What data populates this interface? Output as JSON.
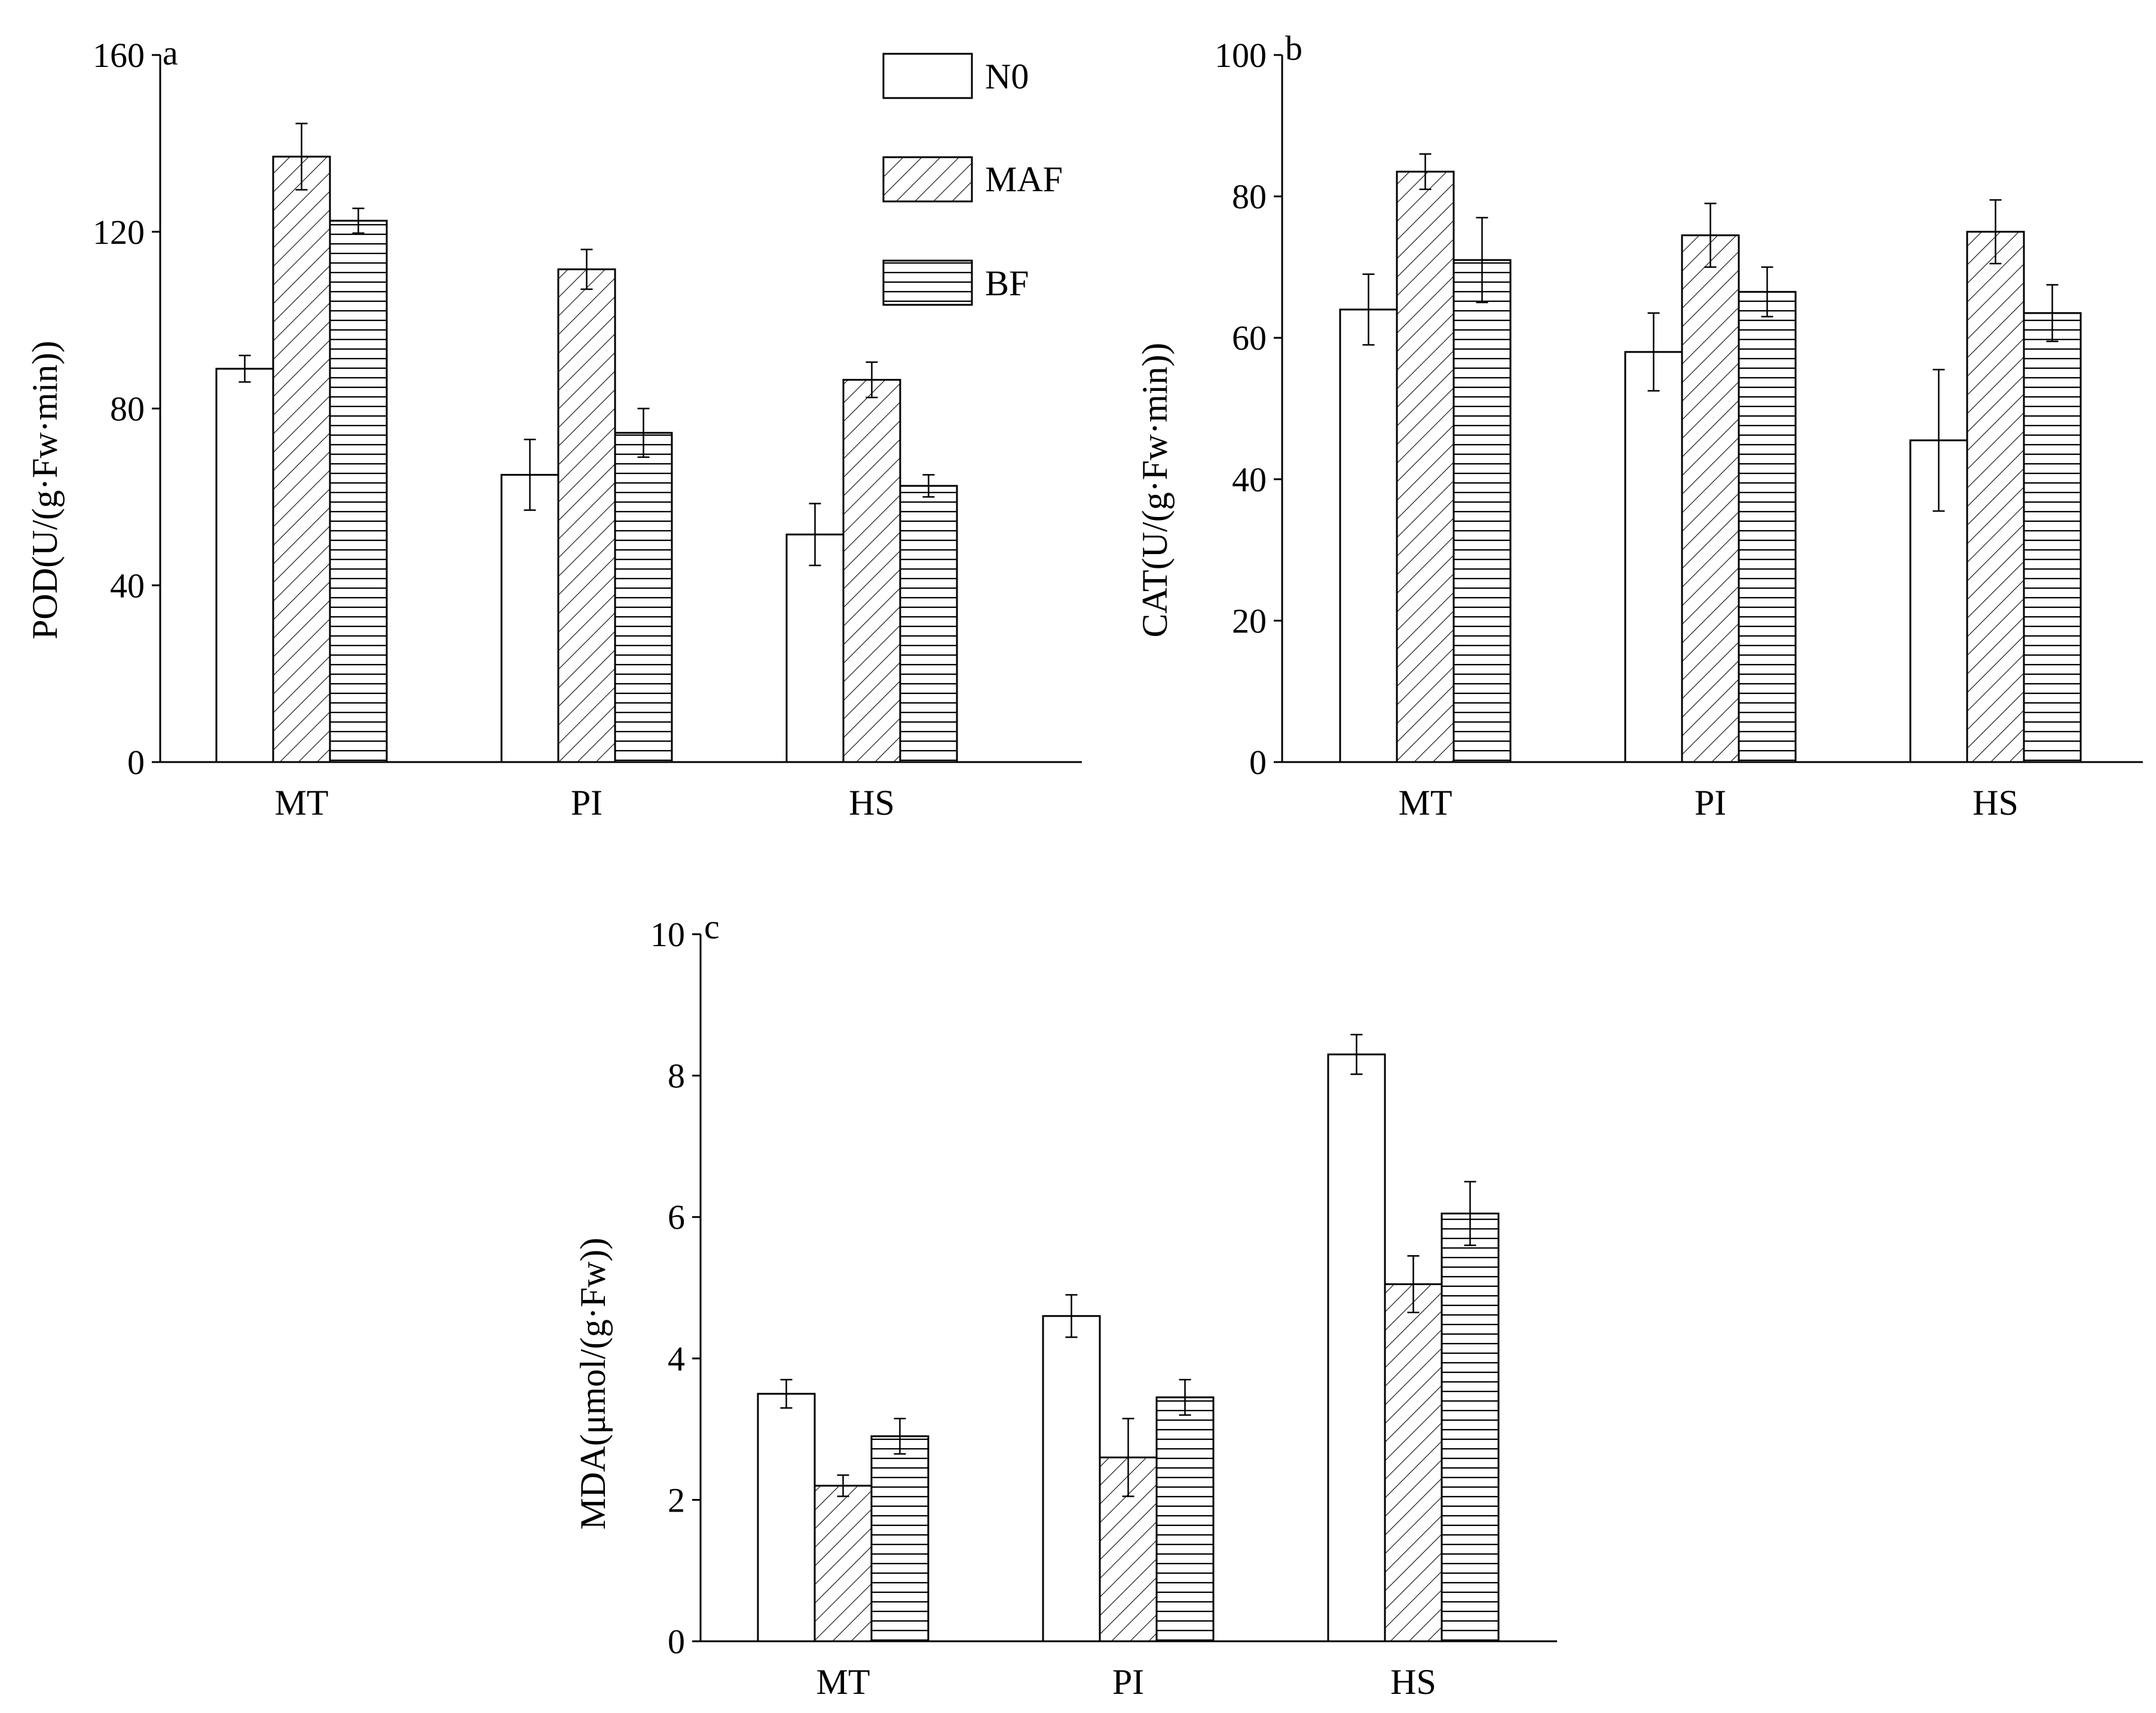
{
  "chart_data": [
    {
      "type": "bar",
      "panel": "a",
      "ylabel": "POD(U/(g·Fw·min))",
      "categories": [
        "MT",
        "PI",
        "HS"
      ],
      "ylim": [
        0,
        160
      ],
      "yticks": [
        0,
        40,
        80,
        120,
        160
      ],
      "series": [
        {
          "name": "N0",
          "values": [
            89,
            65,
            51.5
          ],
          "errors": [
            3,
            8,
            7
          ]
        },
        {
          "name": "MAF",
          "values": [
            137,
            111.5,
            86.5
          ],
          "errors": [
            7.5,
            4.5,
            4
          ]
        },
        {
          "name": "BF",
          "values": [
            122.5,
            74.5,
            62.5
          ],
          "errors": [
            2.8,
            5.5,
            2.5
          ]
        }
      ],
      "legend": {
        "position": "top-right",
        "entries": [
          "N0",
          "MAF",
          "BF"
        ]
      }
    },
    {
      "type": "bar",
      "panel": "b",
      "ylabel": "CAT(U/(g·Fw·min))",
      "categories": [
        "MT",
        "PI",
        "HS"
      ],
      "ylim": [
        0,
        100
      ],
      "yticks": [
        0,
        20,
        40,
        60,
        80,
        100
      ],
      "series": [
        {
          "name": "N0",
          "values": [
            64,
            58,
            45.5
          ],
          "errors": [
            5,
            5.5,
            10
          ]
        },
        {
          "name": "MAF",
          "values": [
            83.5,
            74.5,
            75
          ],
          "errors": [
            2.5,
            4.5,
            4.5
          ]
        },
        {
          "name": "BF",
          "values": [
            71,
            66.5,
            63.5
          ],
          "errors": [
            6,
            3.5,
            4
          ]
        }
      ]
    },
    {
      "type": "bar",
      "panel": "c",
      "ylabel": "MDA(μmol/(g·Fw))",
      "categories": [
        "MT",
        "PI",
        "HS"
      ],
      "ylim": [
        0,
        10
      ],
      "yticks": [
        0,
        2,
        4,
        6,
        8,
        10
      ],
      "series": [
        {
          "name": "N0",
          "values": [
            3.5,
            4.6,
            8.3
          ],
          "errors": [
            0.2,
            0.3,
            0.28
          ]
        },
        {
          "name": "MAF",
          "values": [
            2.2,
            2.6,
            5.05
          ],
          "errors": [
            0.15,
            0.55,
            0.4
          ]
        },
        {
          "name": "BF",
          "values": [
            2.9,
            3.45,
            6.05
          ],
          "errors": [
            0.25,
            0.25,
            0.45
          ]
        }
      ]
    }
  ],
  "colors": {
    "axis": "#000000",
    "fill": "#ffffff",
    "hatch": "#000000"
  }
}
